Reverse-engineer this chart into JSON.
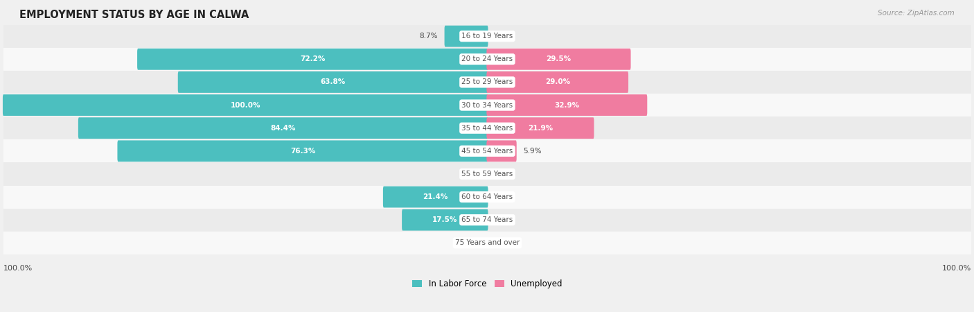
{
  "title": "EMPLOYMENT STATUS BY AGE IN CALWA",
  "source": "Source: ZipAtlas.com",
  "age_groups": [
    "16 to 19 Years",
    "20 to 24 Years",
    "25 to 29 Years",
    "30 to 34 Years",
    "35 to 44 Years",
    "45 to 54 Years",
    "55 to 59 Years",
    "60 to 64 Years",
    "65 to 74 Years",
    "75 Years and over"
  ],
  "labor_force": [
    8.7,
    72.2,
    63.8,
    100.0,
    84.4,
    76.3,
    0.0,
    21.4,
    17.5,
    0.0
  ],
  "unemployed": [
    0.0,
    29.5,
    29.0,
    32.9,
    21.9,
    5.9,
    0.0,
    0.0,
    0.0,
    0.0
  ],
  "labor_force_color": "#4cbfbf",
  "unemployed_color": "#f07ca0",
  "row_colors": [
    "#ebebeb",
    "#f8f8f8"
  ],
  "background_color": "#f0f0f0",
  "title_color": "#222222",
  "label_color_dark": "#444444",
  "label_color_white": "#ffffff",
  "center_label_bg": "#ffffff",
  "center_label_color": "#555555",
  "xlim": 100,
  "legend_labor": "In Labor Force",
  "legend_unemployed": "Unemployed",
  "bar_height": 0.62,
  "label_threshold": 12
}
